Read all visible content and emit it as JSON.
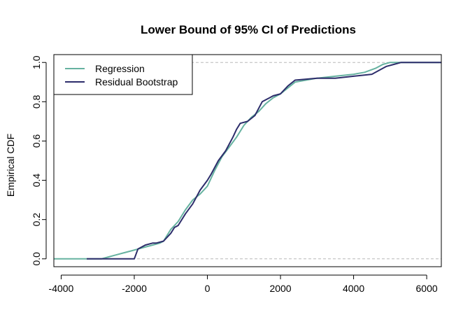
{
  "chart_data": {
    "type": "line",
    "title": "Lower Bound of 95% CI of Predictions",
    "xlabel": "",
    "ylabel": "Empirical CDF",
    "xlim": [
      -4200,
      6400
    ],
    "ylim": [
      -0.04,
      1.04
    ],
    "x_ticks": [
      "-4000",
      "-2000",
      "0",
      "2000",
      "4000",
      "6000"
    ],
    "y_ticks": [
      "0.0",
      "0.2",
      "0.4",
      "0.6",
      "0.8",
      "1.0"
    ],
    "reference_lines": [
      0,
      1
    ],
    "legend_position": "top-left",
    "series": [
      {
        "name": "Regression",
        "color": "#66b2a0",
        "x": [
          -4200,
          -3300,
          -2900,
          -2700,
          -2500,
          -2300,
          -2100,
          -1900,
          -1700,
          -1500,
          -1300,
          -1200,
          -1000,
          -800,
          -600,
          -400,
          -200,
          0,
          200,
          400,
          600,
          800,
          1000,
          1200,
          1400,
          1600,
          1800,
          2000,
          2200,
          2400,
          3000,
          3500,
          4000,
          4300,
          4600,
          4800,
          5000,
          5200,
          6400
        ],
        "y": [
          0,
          0,
          0,
          0.01,
          0.02,
          0.03,
          0.04,
          0.05,
          0.06,
          0.07,
          0.08,
          0.09,
          0.15,
          0.19,
          0.25,
          0.3,
          0.33,
          0.37,
          0.45,
          0.52,
          0.57,
          0.62,
          0.68,
          0.72,
          0.75,
          0.79,
          0.82,
          0.84,
          0.87,
          0.9,
          0.92,
          0.93,
          0.94,
          0.95,
          0.97,
          0.99,
          1,
          1,
          1
        ]
      },
      {
        "name": "Residual Bootstrap",
        "color": "#2d2d6b",
        "x": [
          -3300,
          -2000,
          -1900,
          -1700,
          -1500,
          -1400,
          -1200,
          -1000,
          -900,
          -800,
          -600,
          -400,
          -200,
          0,
          100,
          300,
          500,
          700,
          800,
          900,
          1100,
          1300,
          1500,
          1700,
          1800,
          2000,
          2200,
          2400,
          3000,
          3500,
          4000,
          4500,
          4700,
          4900,
          5100,
          5300,
          6400
        ],
        "y": [
          0,
          0,
          0.05,
          0.07,
          0.08,
          0.08,
          0.09,
          0.13,
          0.16,
          0.17,
          0.23,
          0.28,
          0.35,
          0.4,
          0.43,
          0.5,
          0.55,
          0.62,
          0.66,
          0.69,
          0.7,
          0.73,
          0.8,
          0.82,
          0.83,
          0.84,
          0.88,
          0.91,
          0.92,
          0.92,
          0.93,
          0.94,
          0.96,
          0.98,
          0.99,
          1,
          1
        ]
      }
    ]
  }
}
